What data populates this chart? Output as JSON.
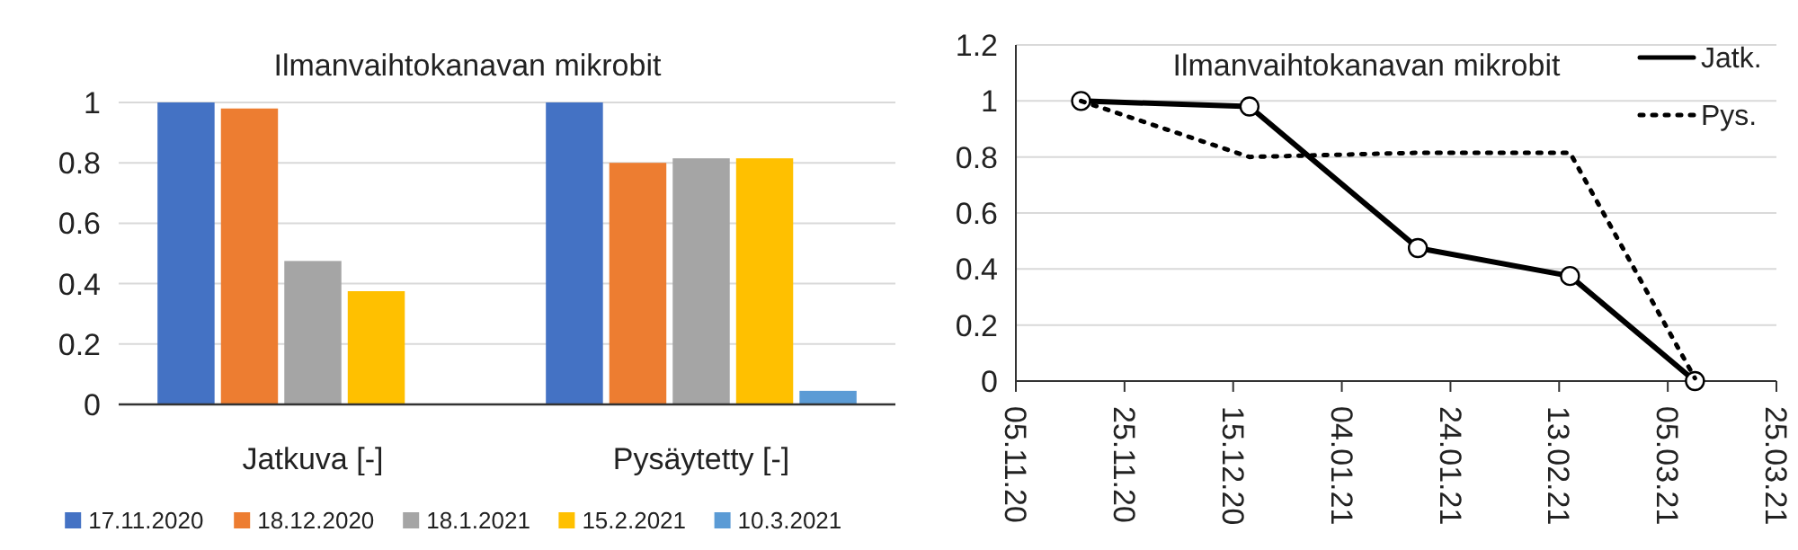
{
  "chart_data": [
    {
      "type": "bar",
      "title": "Ilmanvaihtokanavan mikrobit",
      "categories": [
        "Jatkuva [-]",
        "Pysäytetty [-]"
      ],
      "series": [
        {
          "name": "17.11.2020",
          "color": "#4472c4",
          "values": [
            1,
            1
          ]
        },
        {
          "name": "18.12.2020",
          "color": "#ed7d31",
          "values": [
            0.98,
            0.8
          ]
        },
        {
          "name": "18.1.2021",
          "color": "#a5a5a5",
          "values": [
            0.475,
            0.815
          ]
        },
        {
          "name": "15.2.2021",
          "color": "#ffc000",
          "values": [
            0.375,
            0.815
          ]
        },
        {
          "name": "10.3.2021",
          "color": "#5b9bd5",
          "values": [
            0,
            0.045
          ]
        }
      ],
      "ylim": [
        0,
        1
      ],
      "yticks": [
        0,
        0.2,
        0.4,
        0.6,
        0.8,
        1
      ],
      "grid": "y",
      "legend": "bottom"
    },
    {
      "type": "line",
      "title": "Ilmanvaihtokanavan mikrobit",
      "x": [
        "2020-11-17",
        "2020-12-18",
        "2021-01-18",
        "2021-02-15",
        "2021-03-10"
      ],
      "series": [
        {
          "name": "Jatk.",
          "color": "#000000",
          "values": [
            1,
            0.98,
            0.475,
            0.375,
            0
          ],
          "line_style": "solid",
          "marker": "circle"
        },
        {
          "name": "Pys.",
          "color": "#000000",
          "values": [
            1,
            0.8,
            0.815,
            0.815,
            0.01
          ],
          "line_style": "dotted",
          "marker": "none"
        }
      ],
      "xlim": [
        "2020-11-05",
        "2021-03-25"
      ],
      "xticks": [
        {
          "value": "2020-11-05",
          "label": "05.11.20"
        },
        {
          "value": "2020-11-25",
          "label": "25.11.20"
        },
        {
          "value": "2020-12-15",
          "label": "15.12.20"
        },
        {
          "value": "2021-01-04",
          "label": "04.01.21"
        },
        {
          "value": "2021-01-24",
          "label": "24.01.21"
        },
        {
          "value": "2021-02-13",
          "label": "13.02.21"
        },
        {
          "value": "2021-03-05",
          "label": "05.03.21"
        },
        {
          "value": "2021-03-25",
          "label": "25.03.21"
        }
      ],
      "ylim": [
        0,
        1.2
      ],
      "yticks": [
        0,
        0.2,
        0.4,
        0.6,
        0.8,
        1,
        1.2
      ],
      "grid": "y",
      "legend": "top right"
    }
  ]
}
